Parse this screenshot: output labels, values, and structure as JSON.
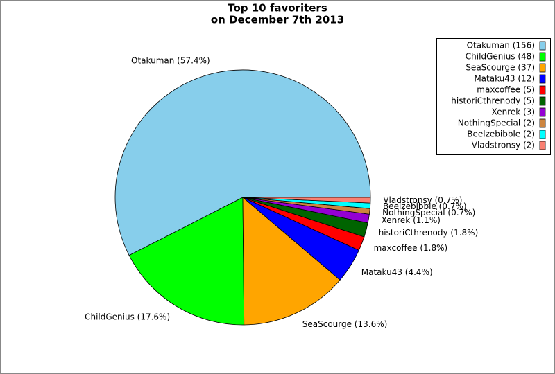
{
  "chart_data": {
    "type": "pie",
    "title": [
      "Top 10 favoriters",
      "on December 7th 2013"
    ],
    "categories": [
      "Otakuman",
      "ChildGenius",
      "SeaScourge",
      "Mataku43",
      "maxcoffee",
      "historiCthrenody",
      "Xenrek",
      "NothingSpecial",
      "Beelzebibble",
      "Vladstronsy"
    ],
    "values": [
      57.4,
      17.6,
      13.6,
      4.4,
      1.8,
      1.8,
      1.1,
      0.7,
      0.7,
      0.7
    ],
    "value_labels": [
      "Otakuman (57.4%)",
      "ChildGenius (17.6%)",
      "SeaScourge (13.6%)",
      "Mataku43 (4.4%)",
      "maxcoffee (1.8%)",
      "historiCthrenody (1.8%)",
      "Xenrek (1.1%)",
      "NothingSpecial (0.7%)",
      "Beelzebibble (0.7%)",
      "Vladstronsy (0.7%)"
    ],
    "legend_labels": [
      "Otakuman (156)",
      "ChildGenius (48)",
      "SeaScourge (37)",
      "Mataku43 (12)",
      "maxcoffee (5)",
      "historiCthrenody (5)",
      "Xenrek (3)",
      "NothingSpecial (2)",
      "Beelzebibble (2)",
      "Vladstronsy (2)"
    ],
    "colors": [
      "#87ceeb",
      "#00ff00",
      "#ffa500",
      "#0000ff",
      "#ff0000",
      "#006400",
      "#9400d3",
      "#cd853f",
      "#00ffff",
      "#fa8072"
    ],
    "legend": "upper right"
  }
}
